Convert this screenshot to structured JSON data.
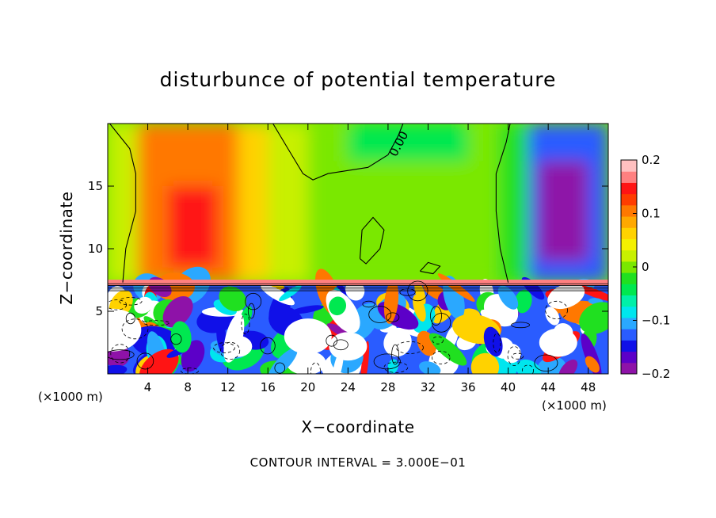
{
  "chart_data": {
    "type": "heatmap",
    "title": "disturbunce of potential temperature",
    "xlabel": "X−coordinate",
    "ylabel": "Z−coordinate",
    "x_unit": "(×1000 m)",
    "x_unit_right": "(×1000 m)",
    "xlim": [
      0,
      50
    ],
    "ylim": [
      0,
      20
    ],
    "x_ticks": [
      4,
      8,
      12,
      16,
      20,
      24,
      28,
      32,
      36,
      40,
      44,
      48
    ],
    "y_ticks": [
      5,
      10,
      15
    ],
    "x_tick_labels": [
      "4",
      "8",
      "12",
      "16",
      "20",
      "24",
      "28",
      "32",
      "36",
      "40",
      "44",
      "48"
    ],
    "y_tick_labels": [
      "5",
      "10",
      "15"
    ],
    "colorbar": {
      "range": [
        -0.2,
        0.2
      ],
      "tick_values": [
        0.2,
        0.1,
        0,
        -0.1,
        -0.2
      ],
      "tick_labels": [
        "0.2",
        "0.1",
        "0",
        "−0.1",
        "−0.2"
      ],
      "colors": [
        "#8e12a8",
        "#5c00c8",
        "#1010e8",
        "#2a5cff",
        "#2aa8ff",
        "#00e6ee",
        "#00f0a8",
        "#00e850",
        "#20e020",
        "#7ae800",
        "#c8f000",
        "#f4f000",
        "#ffd200",
        "#ffa800",
        "#ff7800",
        "#ff3c00",
        "#ff1414",
        "#ff8080",
        "#ffc0c0"
      ]
    },
    "contour_labels": [
      {
        "text": "0.00",
        "x": 28.8,
        "y": 17.3
      }
    ],
    "contour_interval_text": "CONTOUR INTERVAL = 3.000E−01",
    "regions": [
      {
        "x": [
          0,
          3
        ],
        "y": [
          7.3,
          20
        ],
        "value": 0.02
      },
      {
        "x": [
          3,
          13
        ],
        "y": [
          7.3,
          20
        ],
        "value": 0.11
      },
      {
        "x": [
          6,
          11
        ],
        "y": [
          8.5,
          15
        ],
        "value": 0.15
      },
      {
        "x": [
          13,
          16
        ],
        "y": [
          7.3,
          20
        ],
        "value": 0.06
      },
      {
        "x": [
          16,
          20
        ],
        "y": [
          7.3,
          20
        ],
        "value": 0.03
      },
      {
        "x": [
          20,
          40
        ],
        "y": [
          7.3,
          20
        ],
        "value": 0.0
      },
      {
        "x": [
          24,
          36
        ],
        "y": [
          17,
          20
        ],
        "value": -0.05
      },
      {
        "x": [
          39,
          42
        ],
        "y": [
          7.3,
          20
        ],
        "value": -0.03
      },
      {
        "x": [
          42,
          50
        ],
        "y": [
          7.3,
          20
        ],
        "value": -0.12
      },
      {
        "x": [
          43,
          48
        ],
        "y": [
          9,
          17
        ],
        "value": -0.18
      }
    ],
    "lower_layer": {
      "y": [
        0,
        7.3
      ],
      "description_free": true
    }
  }
}
